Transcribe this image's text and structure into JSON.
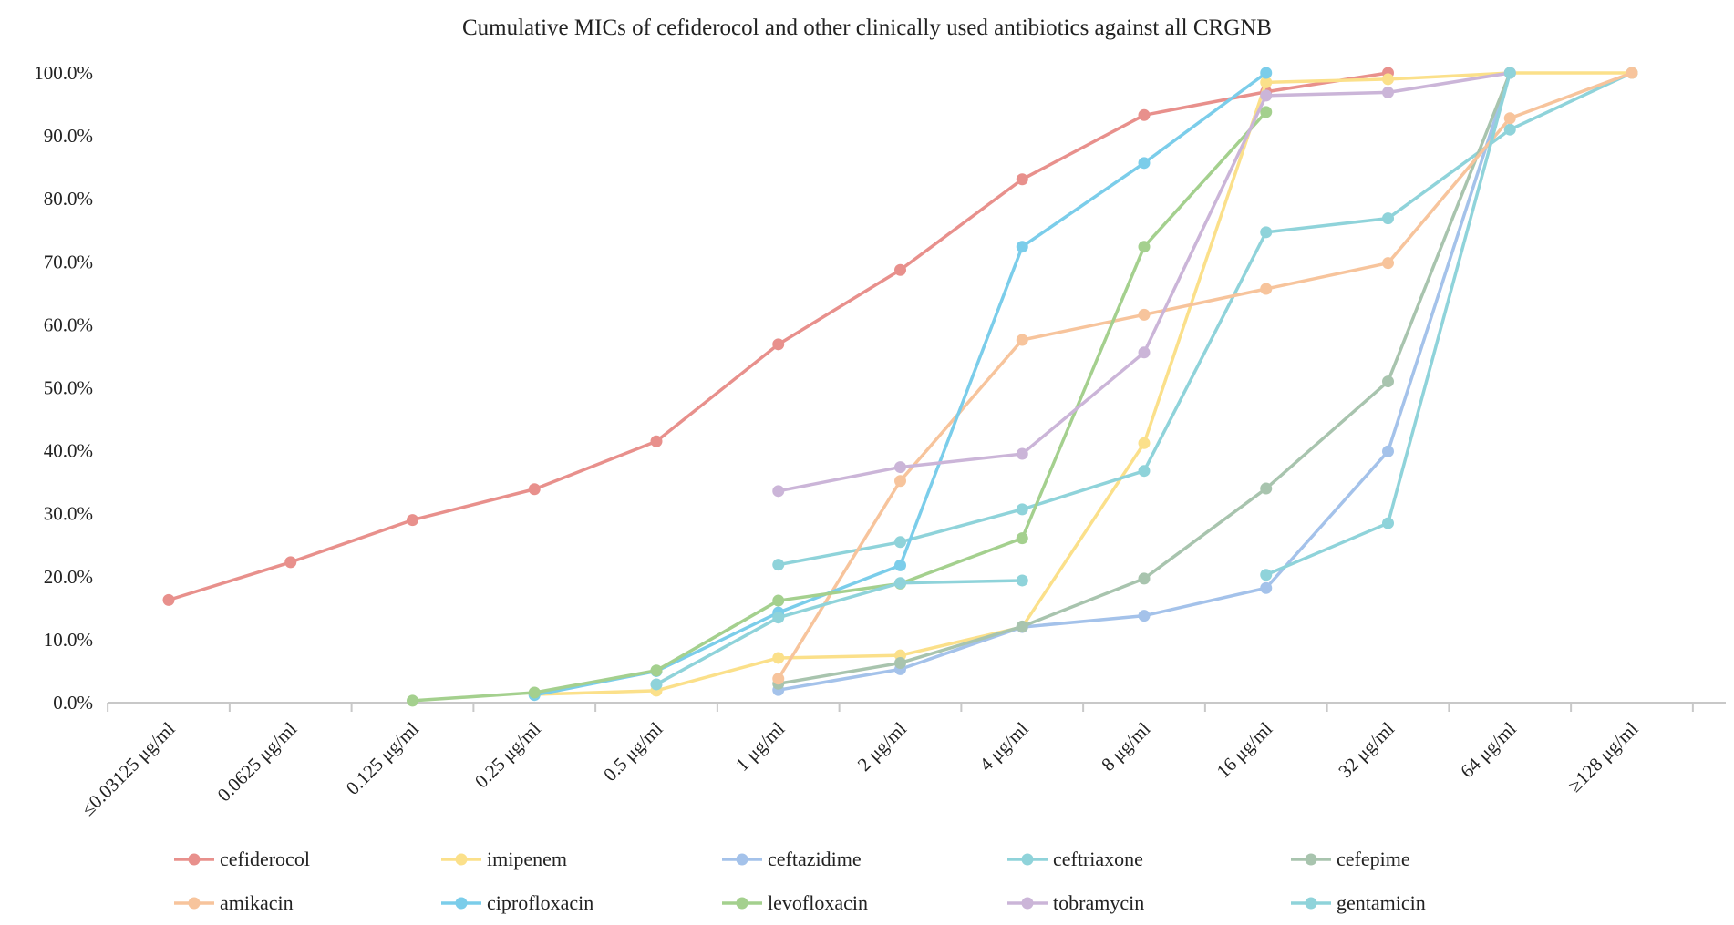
{
  "chart_data": {
    "type": "line",
    "title": "Cumulative MICs of cefiderocol and other clinically used antibiotics against all CRGNB",
    "xlabel": "",
    "ylabel": "",
    "ylim": [
      0,
      100
    ],
    "y_ticks": [
      "0.0%",
      "10.0%",
      "20.0%",
      "30.0%",
      "40.0%",
      "50.0%",
      "60.0%",
      "70.0%",
      "80.0%",
      "90.0%",
      "100.0%"
    ],
    "grid": false,
    "legend_position": "bottom",
    "categories": [
      "≤0.03125 μg/ml",
      "0.0625 μg/ml",
      "0.125 μg/ml",
      "0.25 μg/ml",
      "0.5 μg/ml",
      "1 μg/ml",
      "2 μg/ml",
      "4 μg/ml",
      "8 μg/ml",
      "16 μg/ml",
      "32 μg/ml",
      "64 μg/ml",
      "≥128 μg/ml"
    ],
    "series": [
      {
        "name": "cefiderocol",
        "color": "#e8908c",
        "values": [
          16.3,
          22.3,
          29.0,
          33.9,
          41.5,
          56.9,
          68.7,
          83.1,
          93.3,
          97.0,
          100,
          null,
          null
        ]
      },
      {
        "name": "imipenem",
        "color": "#fbe08a",
        "values": [
          null,
          null,
          null,
          1.3,
          1.9,
          7.1,
          7.5,
          12.0,
          41.2,
          98.5,
          99.0,
          100,
          100
        ]
      },
      {
        "name": "ceftazidime",
        "color": "#a4c2ea",
        "values": [
          null,
          null,
          null,
          null,
          null,
          2.0,
          5.3,
          12.0,
          13.8,
          18.2,
          39.9,
          100,
          null
        ]
      },
      {
        "name": "ceftriaxone",
        "color": "#8fd3da",
        "values": [
          null,
          null,
          null,
          null,
          null,
          21.9,
          25.5,
          30.7,
          36.8,
          74.7,
          76.9,
          91.0,
          100
        ]
      },
      {
        "name": "cefepime",
        "color": "#a8c4ae",
        "values": [
          null,
          null,
          null,
          null,
          null,
          3.0,
          6.3,
          12.1,
          19.7,
          34.0,
          51.0,
          100,
          null
        ]
      },
      {
        "name": "amikacin",
        "color": "#f7c49c",
        "values": [
          null,
          null,
          null,
          null,
          null,
          3.8,
          35.2,
          57.6,
          61.6,
          65.7,
          69.8,
          92.8,
          100
        ]
      },
      {
        "name": "ciprofloxacin",
        "color": "#7bcdea",
        "values": [
          null,
          null,
          null,
          1.2,
          5.0,
          14.3,
          21.8,
          72.4,
          85.7,
          100,
          null,
          null,
          null
        ]
      },
      {
        "name": "levofloxacin",
        "color": "#a4d08e",
        "values": [
          null,
          null,
          0.3,
          1.6,
          5.1,
          16.2,
          18.9,
          26.1,
          72.4,
          93.8,
          null,
          null,
          null
        ]
      },
      {
        "name": "tobramycin",
        "color": "#cbb5d8",
        "values": [
          null,
          null,
          null,
          null,
          null,
          33.6,
          37.4,
          39.5,
          55.6,
          96.4,
          96.9,
          100,
          null
        ]
      },
      {
        "name": "gentamicin",
        "color": "#8fd3da",
        "values": [
          null,
          null,
          null,
          null,
          2.9,
          13.5,
          19.0,
          19.4,
          null,
          20.3,
          28.5,
          100,
          null
        ]
      }
    ]
  }
}
